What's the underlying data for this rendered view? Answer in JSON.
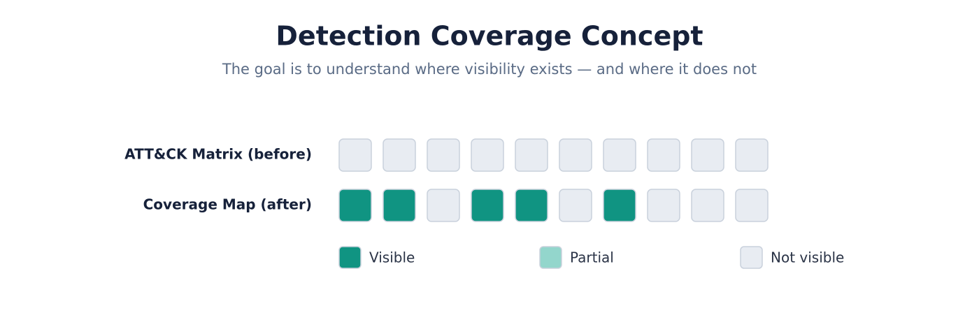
{
  "header": {
    "title": "Detection Coverage Concept",
    "subtitle": "The goal is to understand where visibility exists — and where it does not"
  },
  "rows": [
    {
      "label": "ATT&CK Matrix (before)",
      "cells": [
        "Not visible",
        "Not visible",
        "Not visible",
        "Not visible",
        "Not visible",
        "Not visible",
        "Not visible",
        "Not visible",
        "Not visible",
        "Not visible"
      ]
    },
    {
      "label": "Coverage Map (after)",
      "cells": [
        "Visible",
        "Visible",
        "Not visible",
        "Visible",
        "Visible",
        "Not visible",
        "Visible",
        "Not visible",
        "Not visible",
        "Not visible"
      ]
    }
  ],
  "legend": [
    {
      "label": "Visible",
      "color": "#109482"
    },
    {
      "label": "Partial",
      "color": "#93d6cc"
    },
    {
      "label": "Not visible",
      "color": "#e8ecf2"
    }
  ]
}
